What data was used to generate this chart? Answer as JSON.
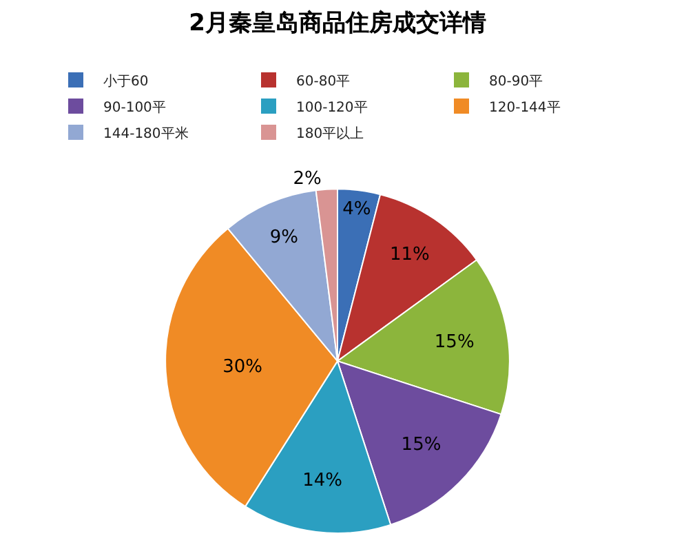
{
  "chart_data": {
    "type": "pie",
    "title": "2月秦皇岛商品住房成交详情",
    "categories": [
      "小于60",
      "60-80平",
      "80-90平",
      "90-100平",
      "100-120平",
      "120-144平",
      "144-180平米",
      "180平以上"
    ],
    "values": [
      4,
      11,
      15,
      15,
      14,
      30,
      9,
      2
    ],
    "value_labels": [
      "4%",
      "11%",
      "15%",
      "15%",
      "14%",
      "30%",
      "9%",
      "2%"
    ],
    "colors": [
      "#3b6fb6",
      "#b8322f",
      "#8cb53c",
      "#6d4c9e",
      "#2b9fc1",
      "#f08b25",
      "#92a8d3",
      "#d99493"
    ],
    "legend": "top"
  }
}
